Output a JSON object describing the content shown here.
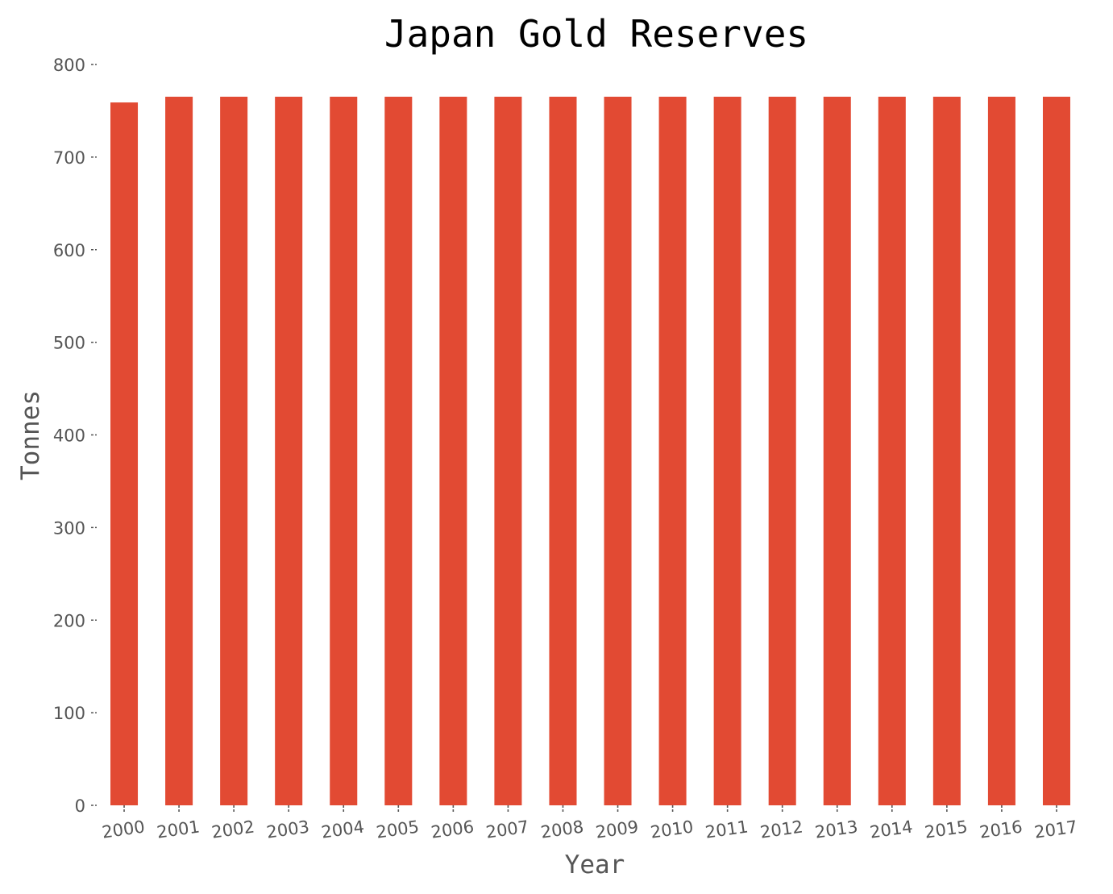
{
  "chart_data": {
    "type": "bar",
    "title": "Japan Gold Reserves",
    "xlabel": "Year",
    "ylabel": "Tonnes",
    "categories": [
      "2000",
      "2001",
      "2002",
      "2003",
      "2004",
      "2005",
      "2006",
      "2007",
      "2008",
      "2009",
      "2010",
      "2011",
      "2012",
      "2013",
      "2014",
      "2015",
      "2016",
      "2017"
    ],
    "values": [
      759,
      765.2,
      765.2,
      765.2,
      765.2,
      765.2,
      765.2,
      765.2,
      765.2,
      765.2,
      765.2,
      765.2,
      765.2,
      765.2,
      765.2,
      765.2,
      765.2,
      765.2
    ],
    "ylim": [
      0,
      800
    ],
    "yticks": [
      0,
      100,
      200,
      300,
      400,
      500,
      600,
      700,
      800
    ],
    "grid": false,
    "legend": "none",
    "bar_color": "#E24A33"
  }
}
